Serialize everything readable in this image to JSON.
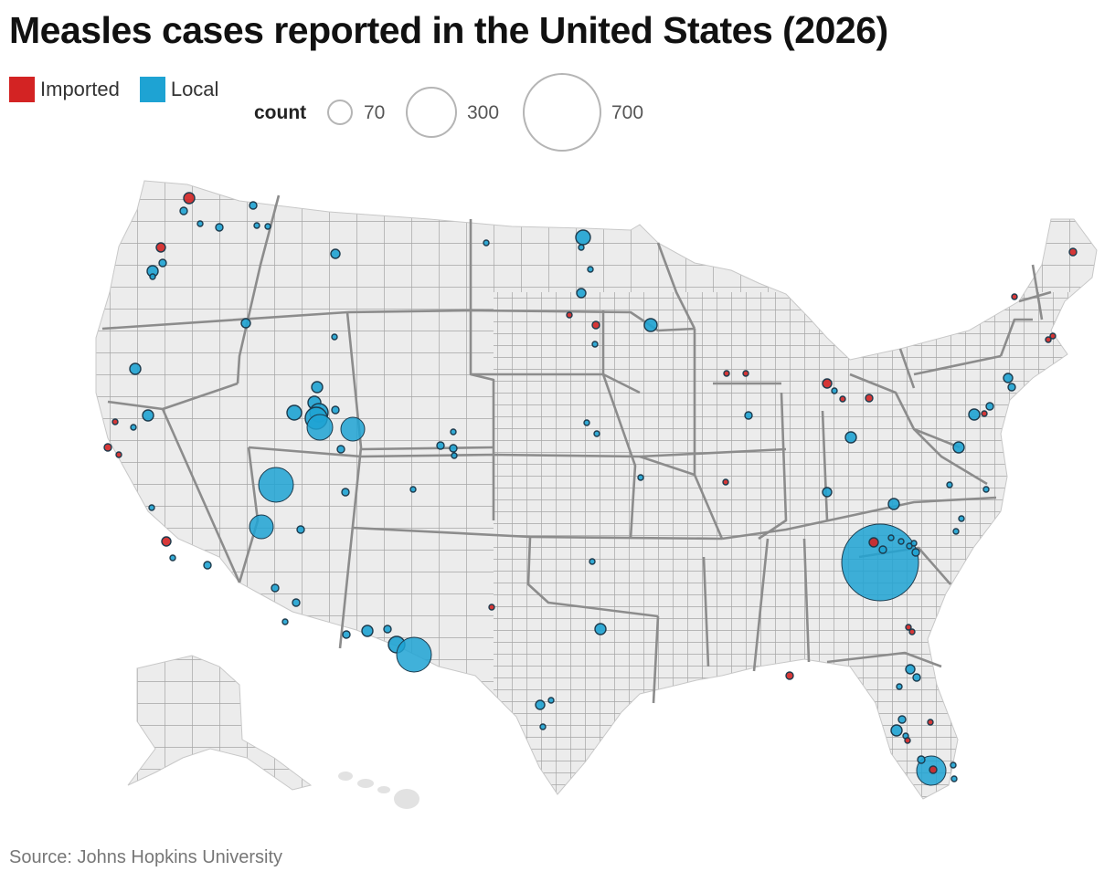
{
  "title": "Measles cases reported in the United States (2026)",
  "legend": {
    "categories": [
      {
        "label": "Imported",
        "color": "#d32323"
      },
      {
        "label": "Local",
        "color": "#1ea3d3"
      }
    ],
    "size_title": "count",
    "sizes": [
      {
        "label": "70",
        "value": 70
      },
      {
        "label": "300",
        "value": 300
      },
      {
        "label": "700",
        "value": 700
      }
    ]
  },
  "map": {
    "region": "United States (lower 48, Alaska, Hawaii)",
    "counties_shown": true,
    "land_color": "#ececec",
    "county_border_color": "#9a9a9a",
    "state_border_color": "#8c8c8c"
  },
  "source": "Source: Johns Hopkins University"
}
